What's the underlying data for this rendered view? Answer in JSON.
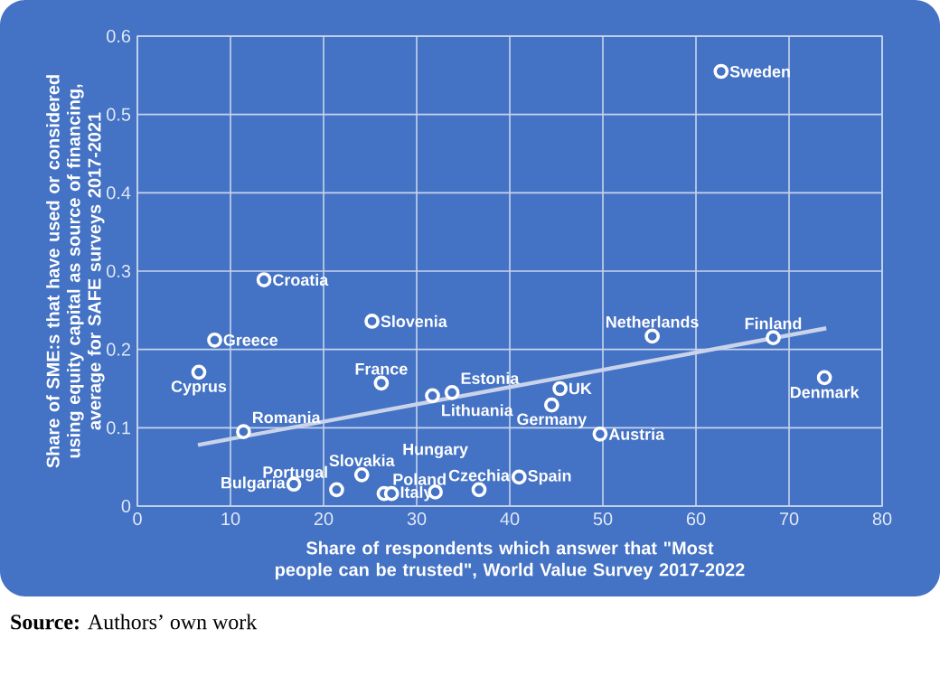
{
  "chart_data": {
    "type": "scatter",
    "xlabel": "Share of respondents which answer that \"Most people can be trusted\", World Value Survey 2017-2022",
    "ylabel": "Share of SME:s that have used or considered using equity capital as source of financing, average for SAFE surveys 2017-2021",
    "xlim": [
      0,
      80
    ],
    "xticks": [
      0,
      10,
      20,
      30,
      40,
      50,
      60,
      70,
      80
    ],
    "ylim": [
      0,
      0.6
    ],
    "yticks": [
      0,
      0.1,
      0.2,
      0.3,
      0.4,
      0.5,
      0.6
    ],
    "grid": true,
    "series": [
      {
        "marker": "circle",
        "color": "#ffffff",
        "x": [
          62.7,
          13.6,
          25.2,
          8.3,
          6.6,
          26.2,
          33.8,
          31.7,
          11.4,
          55.3,
          68.3,
          73.8,
          45.4,
          44.5,
          49.7,
          41.0,
          36.7,
          24.1,
          26.5,
          21.4,
          16.8,
          27.3,
          32.0
        ],
        "values": [
          0.555,
          0.289,
          0.236,
          0.212,
          0.171,
          0.157,
          0.145,
          0.141,
          0.095,
          0.217,
          0.215,
          0.164,
          0.15,
          0.129,
          0.092,
          0.037,
          0.021,
          0.04,
          0.016,
          0.021,
          0.028,
          0.016,
          0.018
        ]
      },
      {
        "type": "line",
        "color": "#c9d3ea",
        "x": [
          6.5,
          74.0
        ],
        "values": [
          0.078,
          0.227
        ]
      }
    ],
    "annotations": [
      {
        "text": "Sweden",
        "x": 62.7,
        "y": 0.555
      },
      {
        "text": "Croatia",
        "x": 13.6,
        "y": 0.289
      },
      {
        "text": "Slovenia",
        "x": 25.2,
        "y": 0.236
      },
      {
        "text": "Greece",
        "x": 8.3,
        "y": 0.212
      },
      {
        "text": "Cyprus",
        "x": 6.6,
        "y": 0.171
      },
      {
        "text": "France",
        "x": 26.2,
        "y": 0.157
      },
      {
        "text": "Estonia",
        "x": 33.8,
        "y": 0.145
      },
      {
        "text": "Lithuania",
        "x": 31.7,
        "y": 0.141
      },
      {
        "text": "Romania",
        "x": 11.4,
        "y": 0.095
      },
      {
        "text": "Netherlands",
        "x": 55.3,
        "y": 0.217
      },
      {
        "text": "Finland",
        "x": 68.3,
        "y": 0.215
      },
      {
        "text": "Denmark",
        "x": 73.8,
        "y": 0.164
      },
      {
        "text": "UK",
        "x": 45.4,
        "y": 0.15
      },
      {
        "text": "Germany",
        "x": 44.5,
        "y": 0.129
      },
      {
        "text": "Austria",
        "x": 49.7,
        "y": 0.092
      },
      {
        "text": "Spain",
        "x": 41.0,
        "y": 0.037
      },
      {
        "text": "Czechia",
        "x": 36.7,
        "y": 0.021
      },
      {
        "text": "Slovakia",
        "x": 24.1,
        "y": 0.04
      },
      {
        "text": "Poland",
        "x": 26.5,
        "y": 0.016
      },
      {
        "text": "Portugal",
        "x": 21.4,
        "y": 0.021
      },
      {
        "text": "Bulgaria",
        "x": 16.8,
        "y": 0.028
      },
      {
        "text": "Italy",
        "x": 27.3,
        "y": 0.016
      },
      {
        "text": "Hungary",
        "x": 32.0,
        "y": 0.018
      },
      "**Source:** Authors’ own work"
    ]
  }
}
